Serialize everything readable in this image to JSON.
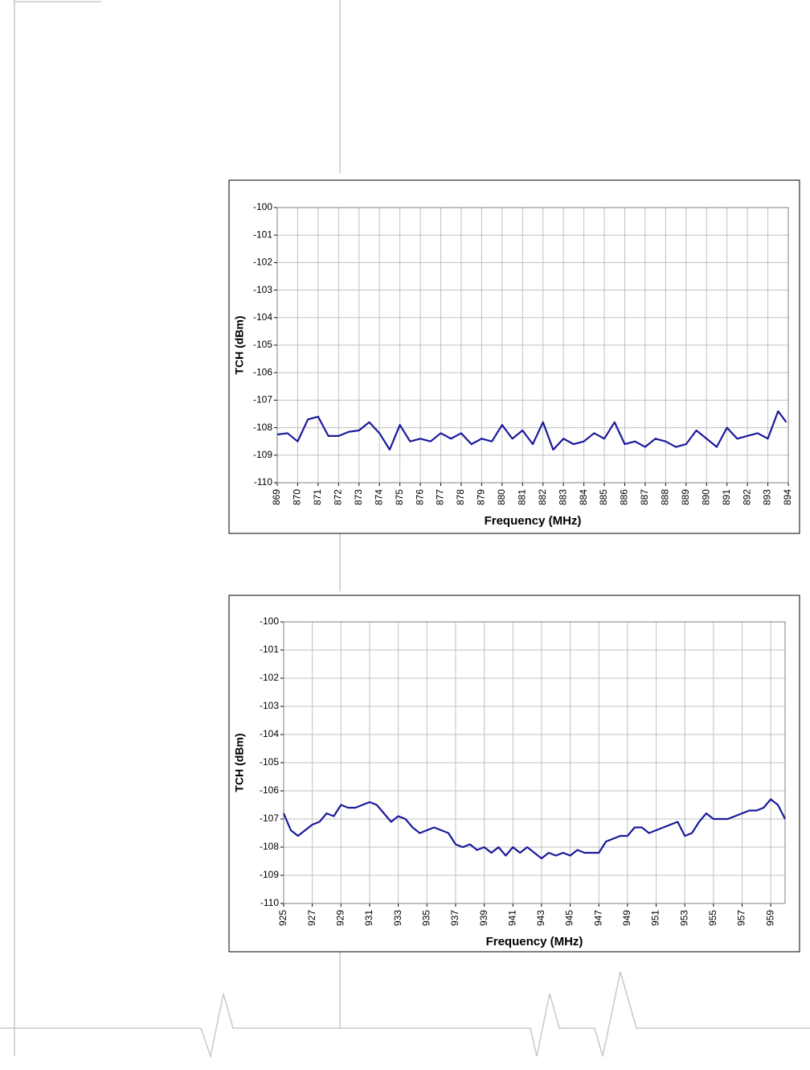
{
  "chart_data": [
    {
      "type": "line",
      "ylabel": "TCH (dBm)",
      "xlabel": "Frequency (MHz)",
      "xlim": [
        869,
        894
      ],
      "xticks": [
        869,
        870,
        871,
        872,
        873,
        874,
        875,
        876,
        877,
        878,
        879,
        880,
        881,
        882,
        883,
        884,
        885,
        886,
        887,
        888,
        889,
        890,
        891,
        892,
        893,
        894
      ],
      "ylim": [
        -110,
        -100
      ],
      "yticks": [
        -100,
        -101,
        -102,
        -103,
        -104,
        -105,
        -106,
        -107,
        -108,
        -109,
        -110
      ],
      "grid": true,
      "x": [
        869,
        869.5,
        870,
        870.5,
        871,
        871.5,
        872,
        872.5,
        873,
        873.5,
        874,
        874.5,
        875,
        875.5,
        876,
        876.5,
        877,
        877.5,
        878,
        878.5,
        879,
        879.5,
        880,
        880.5,
        881,
        881.5,
        882,
        882.5,
        883,
        883.5,
        884,
        884.5,
        885,
        885.5,
        886,
        886.5,
        887,
        887.5,
        888,
        888.5,
        889,
        889.5,
        890,
        890.5,
        891,
        891.5,
        892,
        892.5,
        893,
        893.5,
        893.9
      ],
      "series": [
        {
          "color": "#1a1a9c",
          "values": [
            -108.25,
            -108.2,
            -108.5,
            -107.7,
            -107.6,
            -108.3,
            -108.3,
            -108.15,
            -108.1,
            -107.8,
            -108.2,
            -108.8,
            -107.9,
            -108.5,
            -108.4,
            -108.5,
            -108.2,
            -108.4,
            -108.2,
            -108.6,
            -108.4,
            -108.5,
            -107.9,
            -108.4,
            -108.1,
            -108.6,
            -107.8,
            -108.8,
            -108.4,
            -108.6,
            -108.5,
            -108.2,
            -108.4,
            -107.8,
            -108.6,
            -108.5,
            -108.7,
            -108.4,
            -108.5,
            -108.7,
            -108.6,
            -108.1,
            -108.4,
            -108.7,
            -108.0,
            -108.4,
            -108.3,
            -108.2,
            -108.4,
            -107.4,
            -107.8
          ]
        }
      ]
    },
    {
      "type": "line",
      "ylabel": "TCH (dBm)",
      "xlabel": "Frequency (MHz)",
      "xlim": [
        925,
        960
      ],
      "xticks": [
        925,
        927,
        929,
        931,
        933,
        935,
        937,
        939,
        941,
        943,
        945,
        947,
        949,
        951,
        953,
        955,
        957,
        959
      ],
      "ylim": [
        -110,
        -100
      ],
      "yticks": [
        -100,
        -101,
        -102,
        -103,
        -104,
        -105,
        -106,
        -107,
        -108,
        -109,
        -110
      ],
      "grid": true,
      "x": [
        925,
        925.5,
        926,
        926.5,
        927,
        927.5,
        928,
        928.5,
        929,
        929.5,
        930,
        930.5,
        931,
        931.5,
        932,
        932.5,
        933,
        933.5,
        934,
        934.5,
        935,
        935.5,
        936,
        936.5,
        937,
        937.5,
        938,
        938.5,
        939,
        939.5,
        940,
        940.5,
        941,
        941.5,
        942,
        942.5,
        943,
        943.5,
        944,
        944.5,
        945,
        945.5,
        946,
        946.5,
        947,
        947.5,
        948,
        948.5,
        949,
        949.5,
        950,
        950.5,
        951,
        951.5,
        952,
        952.5,
        953,
        953.5,
        954,
        954.5,
        955,
        955.5,
        956,
        956.5,
        957,
        957.5,
        958,
        958.5,
        959,
        959.5,
        960
      ],
      "series": [
        {
          "color": "#1a1a9c",
          "values": [
            -106.8,
            -107.4,
            -107.6,
            -107.4,
            -107.2,
            -107.1,
            -106.8,
            -106.9,
            -106.5,
            -106.6,
            -106.6,
            -106.5,
            -106.4,
            -106.5,
            -106.8,
            -107.1,
            -106.9,
            -107.0,
            -107.3,
            -107.5,
            -107.4,
            -107.3,
            -107.4,
            -107.5,
            -107.9,
            -108.0,
            -107.9,
            -108.1,
            -108.0,
            -108.2,
            -108.0,
            -108.3,
            -108.0,
            -108.2,
            -108.0,
            -108.2,
            -108.4,
            -108.2,
            -108.3,
            -108.2,
            -108.3,
            -108.1,
            -108.2,
            -108.2,
            -108.2,
            -107.8,
            -107.7,
            -107.6,
            -107.6,
            -107.3,
            -107.3,
            -107.5,
            -107.4,
            -107.3,
            -107.2,
            -107.1,
            -107.6,
            -107.5,
            -107.1,
            -106.8,
            -107.0,
            -107.0,
            -107.0,
            -106.9,
            -106.8,
            -106.7,
            -106.7,
            -106.6,
            -106.3,
            -106.5,
            -107.0
          ]
        }
      ]
    }
  ]
}
